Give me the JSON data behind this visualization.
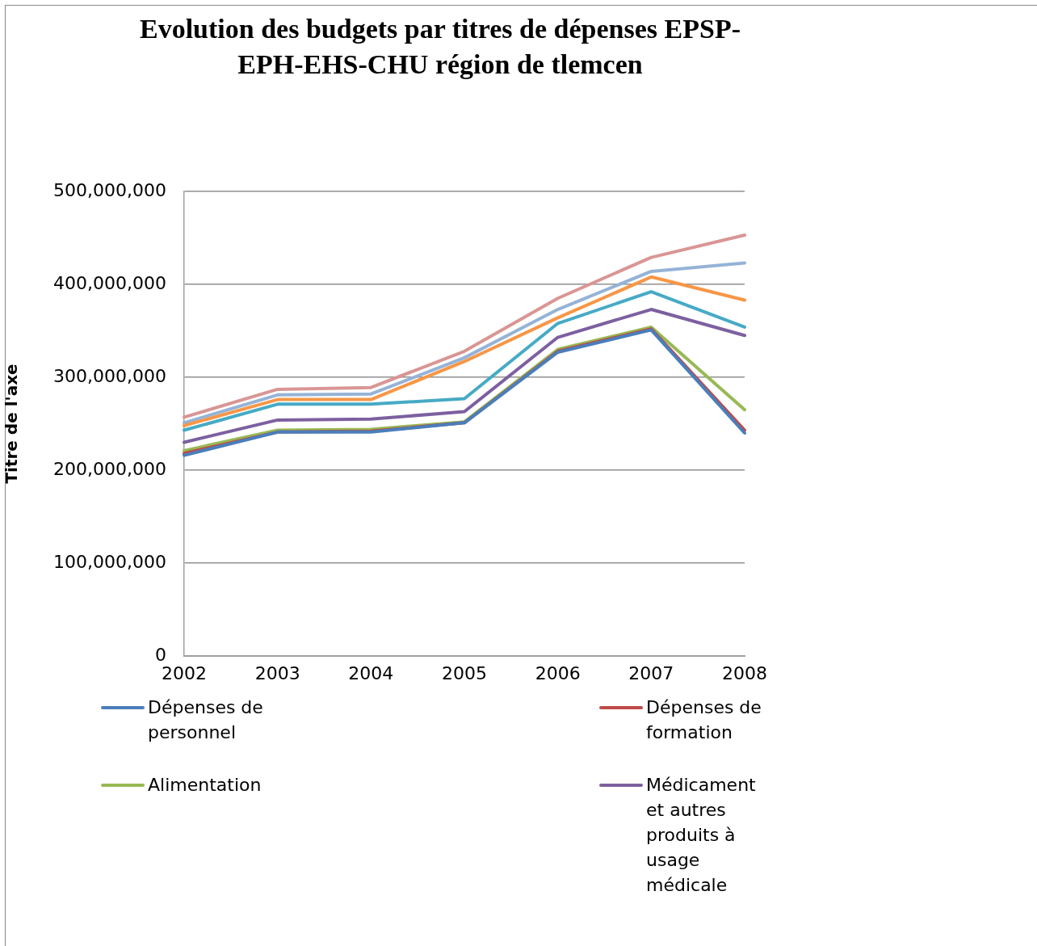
{
  "chart_data": {
    "type": "line",
    "title": "Evolution des budgets par titres de dépenses EPSP-EPH-EHS-CHU région de tlemcen",
    "ylabel": "Titre de l'axe",
    "categories": [
      "2002",
      "2003",
      "2004",
      "2005",
      "2006",
      "2007",
      "2008"
    ],
    "series": [
      {
        "name": "Dépenses de personnel",
        "color": "#4a7ebb",
        "values": [
          216000000,
          241000000,
          241000000,
          251000000,
          327000000,
          351000000,
          240000000
        ]
      },
      {
        "name": "Dépenses de formation",
        "color": "#be4b48",
        "values": [
          218000000,
          241000000,
          242000000,
          251000000,
          328000000,
          352000000,
          243000000
        ]
      },
      {
        "name": "Alimentation",
        "color": "#98b954",
        "values": [
          221000000,
          243000000,
          244000000,
          252000000,
          330000000,
          354000000,
          265000000
        ]
      },
      {
        "name": "Médicament et autres produits à usage médicale",
        "color": "#7d60a0",
        "values": [
          230000000,
          254000000,
          255000000,
          263000000,
          343000000,
          373000000,
          345000000
        ]
      },
      {
        "color": "#46aac5",
        "values": [
          243000000,
          271000000,
          271000000,
          277000000,
          358000000,
          392000000,
          354000000
        ]
      },
      {
        "color": "#f79646",
        "values": [
          248000000,
          276000000,
          276000000,
          317000000,
          364000000,
          408000000,
          383000000
        ]
      },
      {
        "color": "#95b3d7",
        "values": [
          251000000,
          281000000,
          282000000,
          321000000,
          373000000,
          414000000,
          423000000
        ]
      },
      {
        "color": "#d99694",
        "values": [
          257000000,
          287000000,
          289000000,
          328000000,
          385000000,
          429000000,
          453000000
        ]
      }
    ],
    "ylim": [
      0,
      500000000
    ],
    "yticks": [
      {
        "value": 0,
        "label": "0"
      },
      {
        "value": 100000000,
        "label": "100,000,000"
      },
      {
        "value": 200000000,
        "label": "200,000,000"
      },
      {
        "value": 300000000,
        "label": "300,000,000"
      },
      {
        "value": 400000000,
        "label": "400,000,000"
      },
      {
        "value": 500000000,
        "label": "500,000,000"
      }
    ],
    "grid": "y",
    "legend": "bottom",
    "marker": "none",
    "line_style": "solid"
  }
}
